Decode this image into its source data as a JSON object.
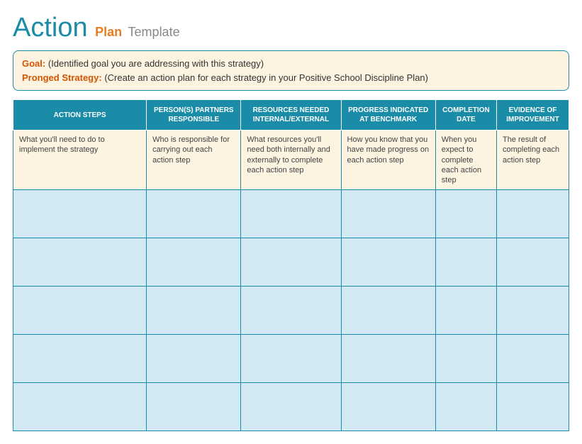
{
  "title": {
    "main": "Action",
    "sub1": "Plan",
    "sub2": "Template"
  },
  "goalBox": {
    "goalLabel": "Goal:",
    "goalText": "(Identified goal you are addressing with this strategy)",
    "strategyLabel": "Pronged Strategy:",
    "strategyText": "(Create an action plan for each strategy in your Positive School Discipline Plan)"
  },
  "table": {
    "columns": [
      {
        "header": "ACTION STEPS",
        "width": "24%"
      },
      {
        "header": "PERSON(S) PARTNERS RESPONSIBLE",
        "width": "17%"
      },
      {
        "header": "RESOURCES NEEDED INTERNAL/EXTERNAL",
        "width": "18%"
      },
      {
        "header": "PROGRESS INDICATED AT BENCHMARK",
        "width": "17%"
      },
      {
        "header": "COMPLETION DATE",
        "width": "11%"
      },
      {
        "header": "EVIDENCE OF IMPROVEMENT",
        "width": "13%"
      }
    ],
    "descRow": [
      "What you'll need to do to implement the strategy",
      "Who is responsible for carrying out each action step",
      "What resources you'll need both internally and externally to complete each action step",
      "How you know that you have made progress on each action step",
      "When you expect to complete each action step",
      "The result of completing each action step"
    ],
    "emptyRows": 5
  },
  "colors": {
    "teal": "#1a8ca8",
    "orange": "#e67e22",
    "darkOrange": "#d35400",
    "cream": "#fdf3e1",
    "lightBlue": "#d2e8f2",
    "gray": "#888"
  }
}
